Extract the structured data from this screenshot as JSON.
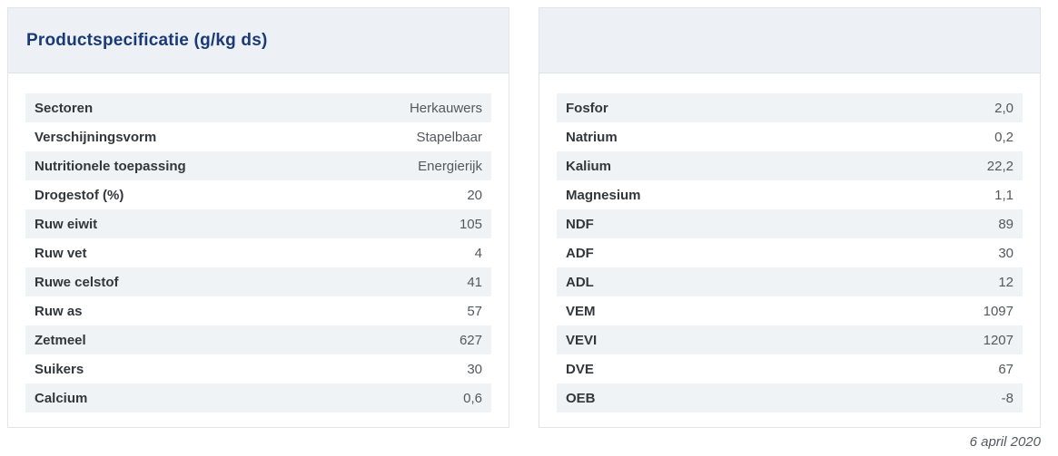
{
  "header": {
    "title": "Productspecificatie (g/kg ds)"
  },
  "left_table": {
    "rows": [
      {
        "label": "Sectoren",
        "value": "Herkauwers"
      },
      {
        "label": "Verschijningsvorm",
        "value": "Stapelbaar"
      },
      {
        "label": "Nutritionele toepassing",
        "value": "Energierijk"
      },
      {
        "label": "Drogestof (%)",
        "value": "20"
      },
      {
        "label": "Ruw eiwit",
        "value": "105"
      },
      {
        "label": "Ruw vet",
        "value": "4"
      },
      {
        "label": "Ruwe celstof",
        "value": "41"
      },
      {
        "label": "Ruw as",
        "value": "57"
      },
      {
        "label": "Zetmeel",
        "value": "627"
      },
      {
        "label": "Suikers",
        "value": "30"
      },
      {
        "label": "Calcium",
        "value": "0,6"
      }
    ]
  },
  "right_table": {
    "rows": [
      {
        "label": "Fosfor",
        "value": "2,0"
      },
      {
        "label": "Natrium",
        "value": "0,2"
      },
      {
        "label": "Kalium",
        "value": "22,2"
      },
      {
        "label": "Magnesium",
        "value": "1,1"
      },
      {
        "label": "NDF",
        "value": "89"
      },
      {
        "label": "ADF",
        "value": "30"
      },
      {
        "label": "ADL",
        "value": "12"
      },
      {
        "label": "VEM",
        "value": "1097"
      },
      {
        "label": "VEVI",
        "value": "1207"
      },
      {
        "label": "DVE",
        "value": "67"
      },
      {
        "label": "OEB",
        "value": "-8"
      }
    ]
  },
  "footer": {
    "date": "6 april 2020"
  },
  "colors": {
    "title_navy": "#1a3a75",
    "panel_header_bg": "#edf1f6",
    "row_stripe_bg": "#f0f3f6",
    "panel_border": "#e1e4e8",
    "label_text": "#33373c",
    "value_text": "#54585d"
  }
}
